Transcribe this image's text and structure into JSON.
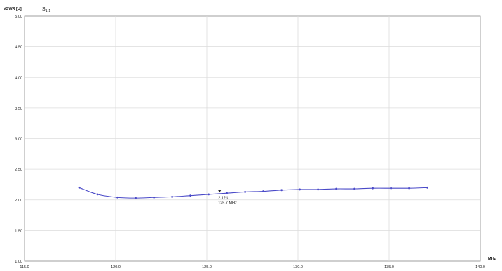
{
  "chart_data": {
    "type": "line",
    "ylabel": "VSWR [U]",
    "xlabel": "MHz",
    "xlim": [
      115.0,
      140.0
    ],
    "ylim": [
      1.0,
      5.0
    ],
    "x_ticks": [
      "115.0",
      "120.0",
      "125.0",
      "130.0",
      "135.0",
      "140.0"
    ],
    "y_ticks": [
      "1.00",
      "1.50",
      "2.00",
      "2.50",
      "3.00",
      "3.50",
      "4.00",
      "4.50",
      "5.00"
    ],
    "grid": true,
    "series": [
      {
        "name": "S 1,1",
        "color": "#4a4ac8",
        "x": [
          118.0,
          119.0,
          120.1,
          121.1,
          122.1,
          123.1,
          124.1,
          125.1,
          126.1,
          127.1,
          128.1,
          129.1,
          130.1,
          131.1,
          132.1,
          133.1,
          134.1,
          135.1,
          136.1,
          137.1
        ],
        "y": [
          2.2,
          2.09,
          2.04,
          2.03,
          2.04,
          2.05,
          2.07,
          2.09,
          2.11,
          2.13,
          2.14,
          2.16,
          2.17,
          2.17,
          2.18,
          2.18,
          2.19,
          2.19,
          2.19,
          2.2
        ]
      }
    ],
    "marker": {
      "x": 125.7,
      "y": 2.12,
      "value_label": "2.12 U",
      "freq_label": "125.7 MHz"
    }
  }
}
